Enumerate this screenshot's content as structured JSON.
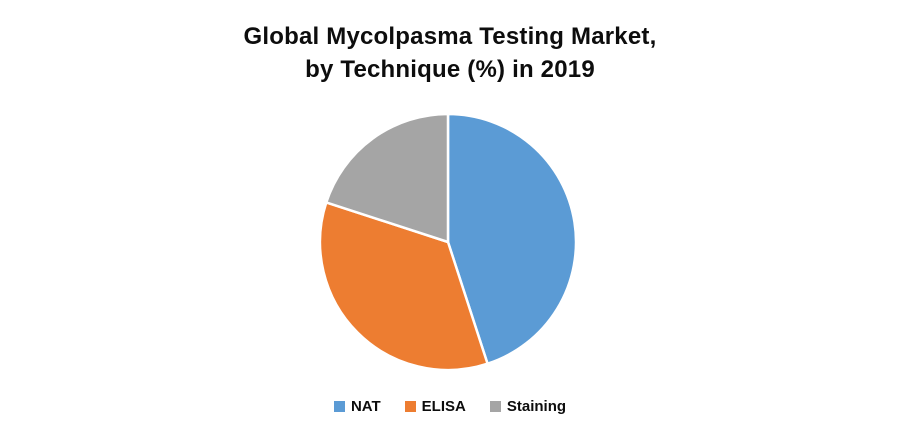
{
  "page": {
    "background": "#ffffff"
  },
  "title": {
    "line1": "Global Mycolpasma Testing Market,",
    "line2": "by Technique (%) in 2019",
    "color": "#0d0d0d"
  },
  "chart_data": {
    "type": "pie",
    "title": "Global Mycolpasma Testing Market, by Technique (%) in 2019",
    "categories": [
      "NAT",
      "ELISA",
      "Staining"
    ],
    "values": [
      45,
      35,
      20
    ],
    "unit": "percent",
    "colors": [
      "#5B9BD5",
      "#ED7D31",
      "#A5A5A5"
    ],
    "start_angle_deg": 0,
    "direction": "clockwise",
    "slice_border_color": "#ffffff",
    "legend_position": "bottom",
    "data_labels": "none"
  },
  "legend": {
    "items": [
      {
        "label": "NAT",
        "color": "#5B9BD5"
      },
      {
        "label": "ELISA",
        "color": "#ED7D31"
      },
      {
        "label": "Staining",
        "color": "#A5A5A5"
      }
    ]
  }
}
